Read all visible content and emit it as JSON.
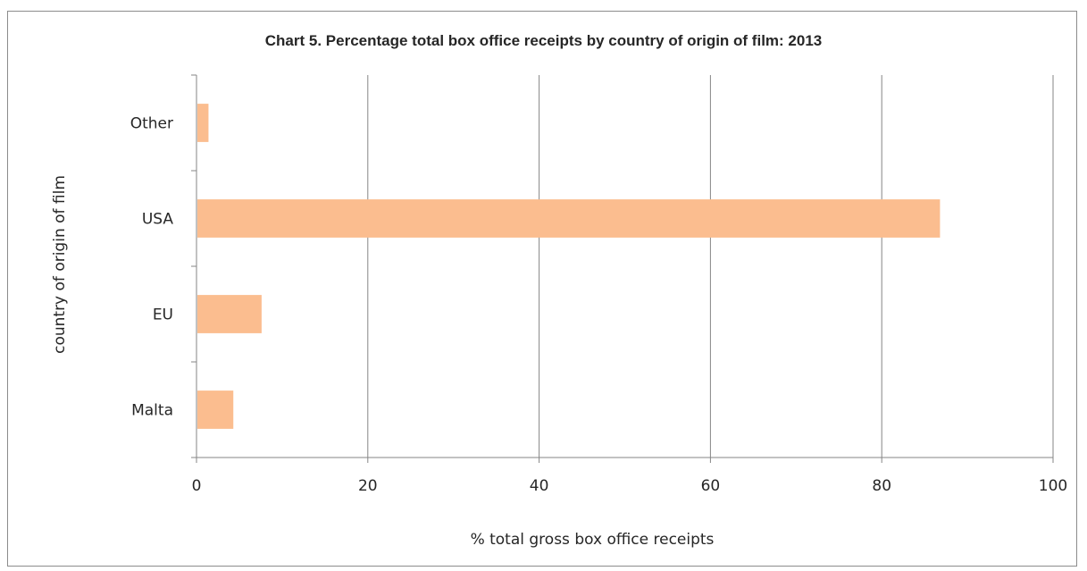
{
  "chart_data": {
    "type": "bar",
    "orientation": "horizontal",
    "title": "Chart 5. Percentage total box office receipts by country of origin of film: 2013",
    "xlabel": "% total gross box office receipts",
    "ylabel": "country of origin of film",
    "categories": [
      "Malta",
      "EU",
      "USA",
      "Other"
    ],
    "values": [
      4.3,
      7.6,
      86.8,
      1.4
    ],
    "xlim": [
      0,
      100
    ],
    "xticks": [
      0,
      20,
      40,
      60,
      80,
      100
    ],
    "grid": "vertical",
    "legend": "none",
    "bar_color": "#fbbd8f"
  }
}
